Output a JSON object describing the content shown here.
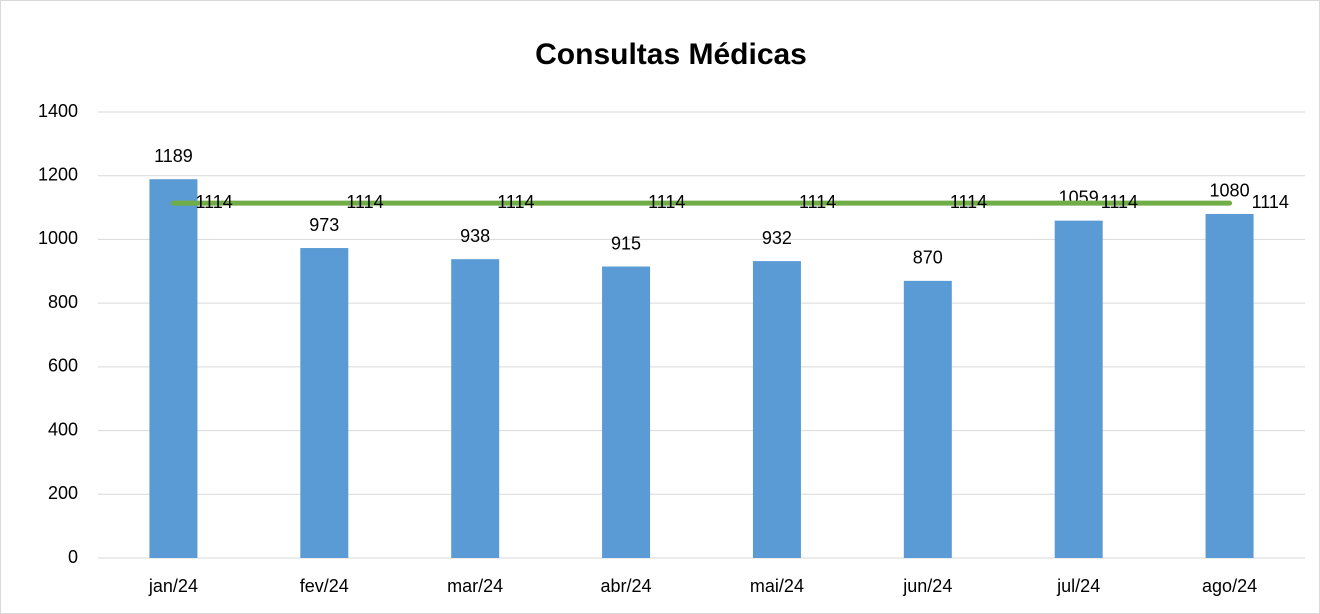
{
  "chart_data": {
    "type": "bar",
    "title": "Consultas Médicas",
    "categories": [
      "jan/24",
      "fev/24",
      "mar/24",
      "abr/24",
      "mai/24",
      "jun/24",
      "jul/24",
      "ago/24"
    ],
    "series": [
      {
        "type": "bar",
        "color": "#5b9bd5",
        "values": [
          1189,
          973,
          938,
          915,
          932,
          870,
          1059,
          1080
        ]
      },
      {
        "type": "line",
        "color": "#70ad47",
        "values": [
          1114,
          1114,
          1114,
          1114,
          1114,
          1114,
          1114,
          1114
        ]
      }
    ],
    "ylim": [
      0,
      1400
    ],
    "yticks": [
      0,
      200,
      400,
      600,
      800,
      1000,
      1200,
      1400
    ],
    "grid": true
  }
}
